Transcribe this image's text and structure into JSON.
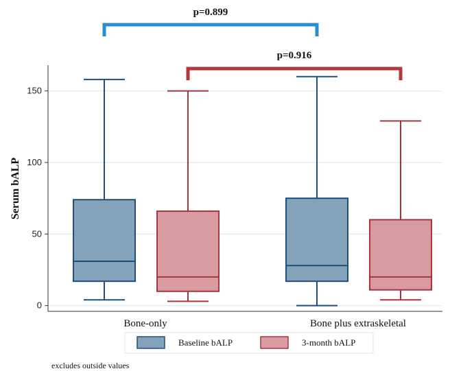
{
  "chart_data": {
    "type": "box",
    "title": "",
    "xlabel": "",
    "ylabel": "Serum bALP",
    "ylim": [
      -4,
      168
    ],
    "yticks": [
      0,
      50,
      100,
      150
    ],
    "grid": true,
    "legend_position": "bottom",
    "categories": [
      "Bone-only",
      "Bone plus extraskeletal"
    ],
    "series": [
      {
        "name": "Baseline bALP",
        "fill": "#84a3ba",
        "stroke": "#1f4e79",
        "boxes": [
          {
            "min": 4,
            "q1": 17,
            "median": 31,
            "q3": 74,
            "max": 158
          },
          {
            "min": 0,
            "q1": 17,
            "median": 28,
            "q3": 75,
            "max": 160
          }
        ]
      },
      {
        "name": "3-month bALP",
        "fill": "#d89ba1",
        "stroke": "#a8343f",
        "boxes": [
          {
            "min": 3,
            "q1": 10,
            "median": 20,
            "q3": 66,
            "max": 150
          },
          {
            "min": 4,
            "q1": 11,
            "median": 20,
            "q3": 60,
            "max": 129
          }
        ]
      }
    ],
    "annotations": [
      {
        "label": "p=0.899",
        "color": "#2b8bd0",
        "from_series": 0,
        "from_category": 0,
        "to_series": 0,
        "to_category": 1,
        "level": "top"
      },
      {
        "label": "p=0.916",
        "color": "#b03a3e",
        "from_series": 1,
        "from_category": 0,
        "to_series": 1,
        "to_category": 1,
        "level": "lower"
      }
    ],
    "note": "excludes outside values"
  }
}
